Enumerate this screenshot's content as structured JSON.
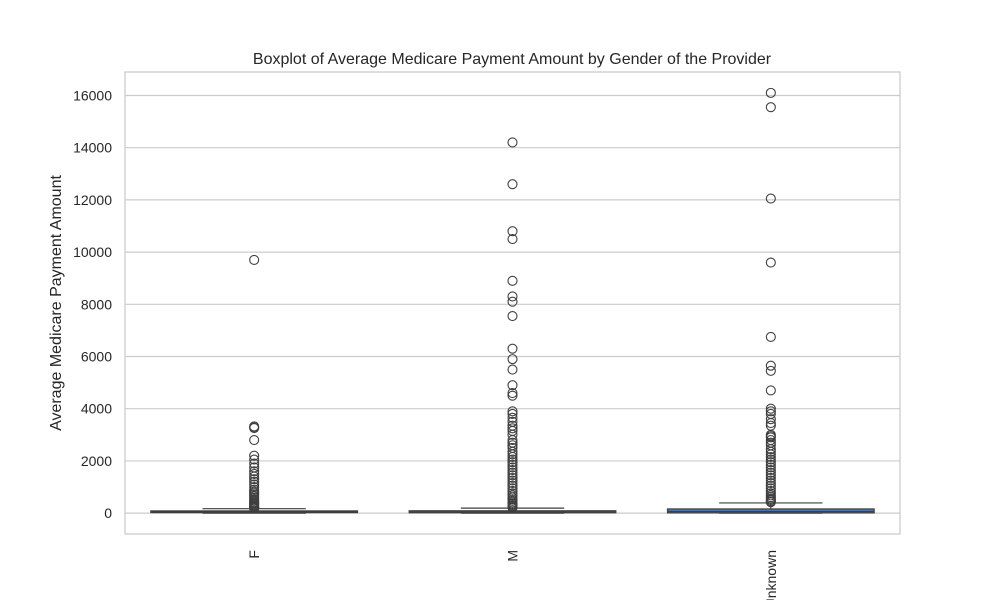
{
  "chart_data": {
    "type": "boxplot",
    "title": "Boxplot of Average Medicare Payment Amount by Gender of the Provider",
    "xlabel": "",
    "ylabel": "Average Medicare Payment Amount",
    "categories": [
      "F",
      "M",
      "Unknown"
    ],
    "ylim": [
      -800,
      16900
    ],
    "yticks": [
      0,
      2000,
      4000,
      6000,
      8000,
      10000,
      12000,
      14000,
      16000
    ],
    "ytick_labels": [
      "0",
      "2000",
      "4000",
      "6000",
      "8000",
      "10000",
      "12000",
      "14000",
      "16000"
    ],
    "grid": "horizontal",
    "box_color": "#4c72b0",
    "boxes": [
      {
        "category": "F",
        "whisker_low": 0,
        "q1": 20,
        "median": 50,
        "q3": 85,
        "whisker_high": 170,
        "outliers": [
          9700,
          3320,
          3280,
          3260,
          2800,
          2200,
          2050,
          1900,
          1750,
          1600,
          1500,
          1400,
          1300,
          1200,
          1100,
          1000,
          900,
          820,
          760,
          700,
          640,
          580,
          520,
          470,
          420,
          380,
          340,
          300,
          260,
          230,
          200,
          185
        ]
      },
      {
        "category": "M",
        "whisker_low": 0,
        "q1": 15,
        "median": 45,
        "q3": 90,
        "whisker_high": 190,
        "outliers": [
          14200,
          12600,
          10800,
          10500,
          8900,
          8300,
          8100,
          7550,
          6300,
          5900,
          5500,
          4900,
          4600,
          4500,
          3900,
          3800,
          3650,
          3500,
          3350,
          3250,
          3150,
          3000,
          2800,
          2700,
          2600,
          2500,
          2350,
          2250,
          2150,
          2050,
          1950,
          1850,
          1750,
          1650,
          1550,
          1450,
          1350,
          1250,
          1150,
          1050,
          950,
          850,
          760,
          680,
          600,
          530,
          470,
          410,
          360,
          310,
          270,
          230,
          210
        ]
      },
      {
        "category": "Unknown",
        "whisker_low": 0,
        "q1": 10,
        "median": 60,
        "q3": 160,
        "whisker_high": 390,
        "outliers": [
          16100,
          15550,
          12050,
          9600,
          6750,
          5650,
          5450,
          4700,
          4000,
          3900,
          3800,
          3600,
          3450,
          3350,
          3000,
          2950,
          2900,
          2800,
          2700,
          2600,
          2450,
          2350,
          2250,
          2150,
          2050,
          1950,
          1850,
          1750,
          1650,
          1550,
          1450,
          1350,
          1250,
          1150,
          1050,
          950,
          850,
          760,
          680,
          610,
          550,
          500,
          450,
          420
        ]
      }
    ]
  }
}
